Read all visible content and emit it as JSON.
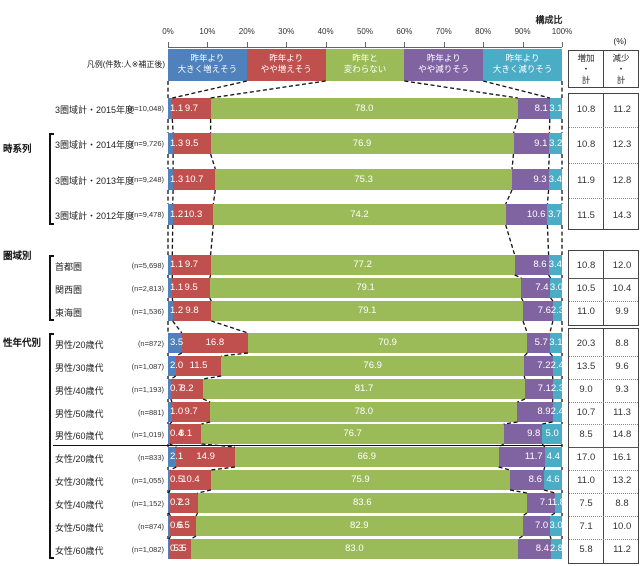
{
  "header": {
    "composition_label": "構成比",
    "percent_label": "(%)",
    "legend_caption": "凡例(件数:人※補正後)"
  },
  "table": {
    "increase_header": "増加\n・\n計",
    "decrease_header": "減少\n・\n計"
  },
  "chart_data": {
    "type": "bar",
    "stacked": true,
    "orientation": "horizontal",
    "unit": "%",
    "x_ticks": [
      "0%",
      "10%",
      "20%",
      "30%",
      "40%",
      "50%",
      "60%",
      "70%",
      "80%",
      "90%",
      "100%"
    ],
    "xlim": [
      0,
      100
    ],
    "legend_position": "top",
    "series": [
      {
        "name": "昨年より\n大きく増えそう",
        "color": "#4f81bd"
      },
      {
        "name": "昨年より\nやや増えそう",
        "color": "#c0504d"
      },
      {
        "name": "昨年と\n変わらない",
        "color": "#9bbb59"
      },
      {
        "name": "昨年より\nやや減りそう",
        "color": "#8064a2"
      },
      {
        "name": "昨年より\n大きく減りそう",
        "color": "#4bacc6"
      }
    ],
    "summary_columns": [
      "増加計",
      "減少計"
    ],
    "groups": [
      {
        "section_label": "",
        "rows": [
          {
            "label": "3圏域計・2015年度",
            "n": "(n=10,048)",
            "values": [
              1.1,
              9.7,
              78.0,
              8.1,
              3.1
            ],
            "increase_total": 10.8,
            "decrease_total": 11.2
          }
        ]
      },
      {
        "section_label": "時系列",
        "rows": [
          {
            "label": "3圏域計・2014年度",
            "n": "(n=9,726)",
            "values": [
              1.3,
              9.5,
              76.9,
              9.1,
              3.2
            ],
            "increase_total": 10.8,
            "decrease_total": 12.3
          },
          {
            "label": "3圏域計・2013年度",
            "n": "(n=9,248)",
            "values": [
              1.3,
              10.7,
              75.3,
              9.3,
              3.4
            ],
            "increase_total": 11.9,
            "decrease_total": 12.8
          },
          {
            "label": "3圏域計・2012年度",
            "n": "(n=9,478)",
            "values": [
              1.2,
              10.3,
              74.2,
              10.6,
              3.7
            ],
            "increase_total": 11.5,
            "decrease_total": 14.3
          }
        ]
      },
      {
        "section_label": "圏域別",
        "rows": [
          {
            "label": "首都圏",
            "n": "(n=5,698)",
            "values": [
              1.1,
              9.7,
              77.2,
              8.6,
              3.4
            ],
            "increase_total": 10.8,
            "decrease_total": 12.0
          },
          {
            "label": "関西圏",
            "n": "(n=2,813)",
            "values": [
              1.1,
              9.5,
              79.1,
              7.4,
              3.0
            ],
            "increase_total": 10.5,
            "decrease_total": 10.4
          },
          {
            "label": "東海圏",
            "n": "(n=1,536)",
            "values": [
              1.2,
              9.8,
              79.1,
              7.6,
              2.3
            ],
            "increase_total": 11.0,
            "decrease_total": 9.9
          }
        ]
      },
      {
        "section_label": "性年代別",
        "rows": [
          {
            "label": "男性/20歳代",
            "n": "(n=872)",
            "values": [
              3.5,
              16.8,
              70.9,
              5.7,
              3.1
            ],
            "increase_total": 20.3,
            "decrease_total": 8.8
          },
          {
            "label": "男性/30歳代",
            "n": "(n=1,087)",
            "values": [
              2.0,
              11.5,
              76.9,
              7.2,
              2.4
            ],
            "increase_total": 13.5,
            "decrease_total": 9.6
          },
          {
            "label": "男性/40歳代",
            "n": "(n=1,193)",
            "values": [
              0.7,
              8.2,
              81.7,
              7.1,
              2.3
            ],
            "increase_total": 9.0,
            "decrease_total": 9.3
          },
          {
            "label": "男性/50歳代",
            "n": "(n=881)",
            "values": [
              1.0,
              9.7,
              78.0,
              8.9,
              2.4
            ],
            "increase_total": 10.7,
            "decrease_total": 11.3
          },
          {
            "label": "男性/60歳代",
            "n": "(n=1,019)",
            "values": [
              0.4,
              8.1,
              76.7,
              9.8,
              5.0
            ],
            "increase_total": 8.5,
            "decrease_total": 14.8
          },
          {
            "label": "女性/20歳代",
            "n": "(n=833)",
            "values": [
              2.1,
              14.9,
              66.9,
              11.7,
              4.4
            ],
            "increase_total": 17.0,
            "decrease_total": 16.1
          },
          {
            "label": "女性/30歳代",
            "n": "(n=1,055)",
            "values": [
              0.5,
              10.4,
              75.9,
              8.6,
              4.6
            ],
            "increase_total": 11.0,
            "decrease_total": 13.2
          },
          {
            "label": "女性/40歳代",
            "n": "(n=1,152)",
            "values": [
              0.2,
              7.3,
              83.6,
              7.1,
              1.8
            ],
            "increase_total": 7.5,
            "decrease_total": 8.8
          },
          {
            "label": "女性/50歳代",
            "n": "(n=874)",
            "values": [
              0.6,
              6.5,
              82.9,
              7.0,
              3.0
            ],
            "increase_total": 7.1,
            "decrease_total": 10.0
          },
          {
            "label": "女性/60歳代",
            "n": "(n=1,082)",
            "values": [
              0.3,
              5.5,
              83.0,
              8.4,
              2.8
            ],
            "increase_total": 5.8,
            "decrease_total": 11.2
          }
        ]
      }
    ]
  }
}
